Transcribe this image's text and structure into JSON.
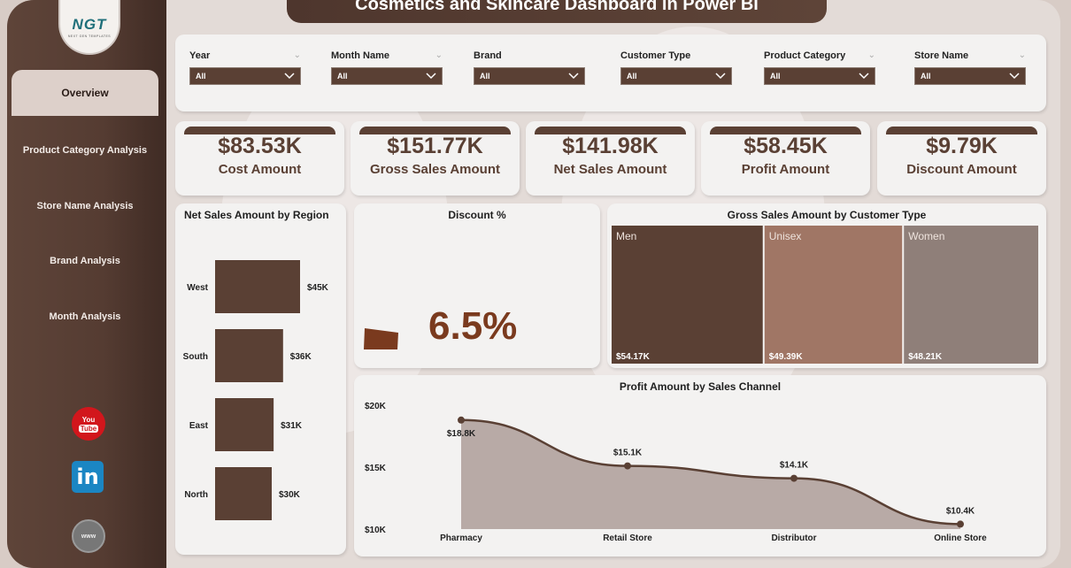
{
  "title": "Cosmetics and Skincare Dashboard in Power BI",
  "logo": {
    "text": "NGT",
    "tagline": "NEXT GEN TEMPLATES"
  },
  "sidebar": {
    "items": [
      {
        "label": "Overview",
        "active": true
      },
      {
        "label": "Product Category Analysis",
        "active": false
      },
      {
        "label": "Store Name Analysis",
        "active": false
      },
      {
        "label": "Brand Analysis",
        "active": false
      },
      {
        "label": "Month Analysis",
        "active": false
      }
    ],
    "social": [
      {
        "icon": "youtube-icon",
        "top": "You",
        "bottom": "Tube"
      },
      {
        "icon": "linkedin-icon",
        "text": "in"
      },
      {
        "icon": "website-globe-icon",
        "text": "www"
      }
    ]
  },
  "slicers": [
    {
      "label": "Year",
      "value": "All"
    },
    {
      "label": "Month Name",
      "value": "All"
    },
    {
      "label": "Brand",
      "value": "All"
    },
    {
      "label": "Customer Type",
      "value": "All"
    },
    {
      "label": "Product Category",
      "value": "All"
    },
    {
      "label": "Store Name",
      "value": "All"
    }
  ],
  "kpis": [
    {
      "value": "$83.53K",
      "label": "Cost Amount"
    },
    {
      "value": "$151.77K",
      "label": "Gross Sales Amount"
    },
    {
      "value": "$141.98K",
      "label": "Net Sales Amount"
    },
    {
      "value": "$58.45K",
      "label": "Profit Amount"
    },
    {
      "value": "$9.79K",
      "label": "Discount Amount"
    }
  ],
  "colors": {
    "brown": "#5a4034",
    "unisex": "#a07665",
    "women": "#8f7f79",
    "area_fill": "#b8aaa6",
    "gauge": "#7a3a1e"
  },
  "chart_data": [
    {
      "type": "bar",
      "orientation": "horizontal",
      "title": "Net Sales Amount by Region",
      "categories": [
        "West",
        "South",
        "East",
        "North"
      ],
      "values": [
        45,
        36,
        31,
        30
      ],
      "labels": [
        "$45K",
        "$36K",
        "$31K",
        "$30K"
      ],
      "unit": "$K"
    },
    {
      "type": "gauge",
      "title": "Discount %",
      "value": 6.5,
      "label": "6.5%"
    },
    {
      "type": "treemap",
      "title": "Gross Sales Amount by Customer Type",
      "categories": [
        "Men",
        "Unisex",
        "Women"
      ],
      "values": [
        54.17,
        49.39,
        48.21
      ],
      "labels": [
        "$54.17K",
        "$49.39K",
        "$48.21K"
      ],
      "unit": "$K"
    },
    {
      "type": "area",
      "title": "Profit Amount by Sales Channel",
      "categories": [
        "Pharmacy",
        "Retail Store",
        "Distributor",
        "Online Store"
      ],
      "values": [
        18.8,
        15.1,
        14.1,
        10.4
      ],
      "labels": [
        "$18.8K",
        "$15.1K",
        "$14.1K",
        "$10.4K"
      ],
      "ylim": [
        10,
        20
      ],
      "yticks": [
        "$20K",
        "$15K",
        "$10K"
      ],
      "ytick_values": [
        20,
        15,
        10
      ],
      "unit": "$K"
    }
  ]
}
